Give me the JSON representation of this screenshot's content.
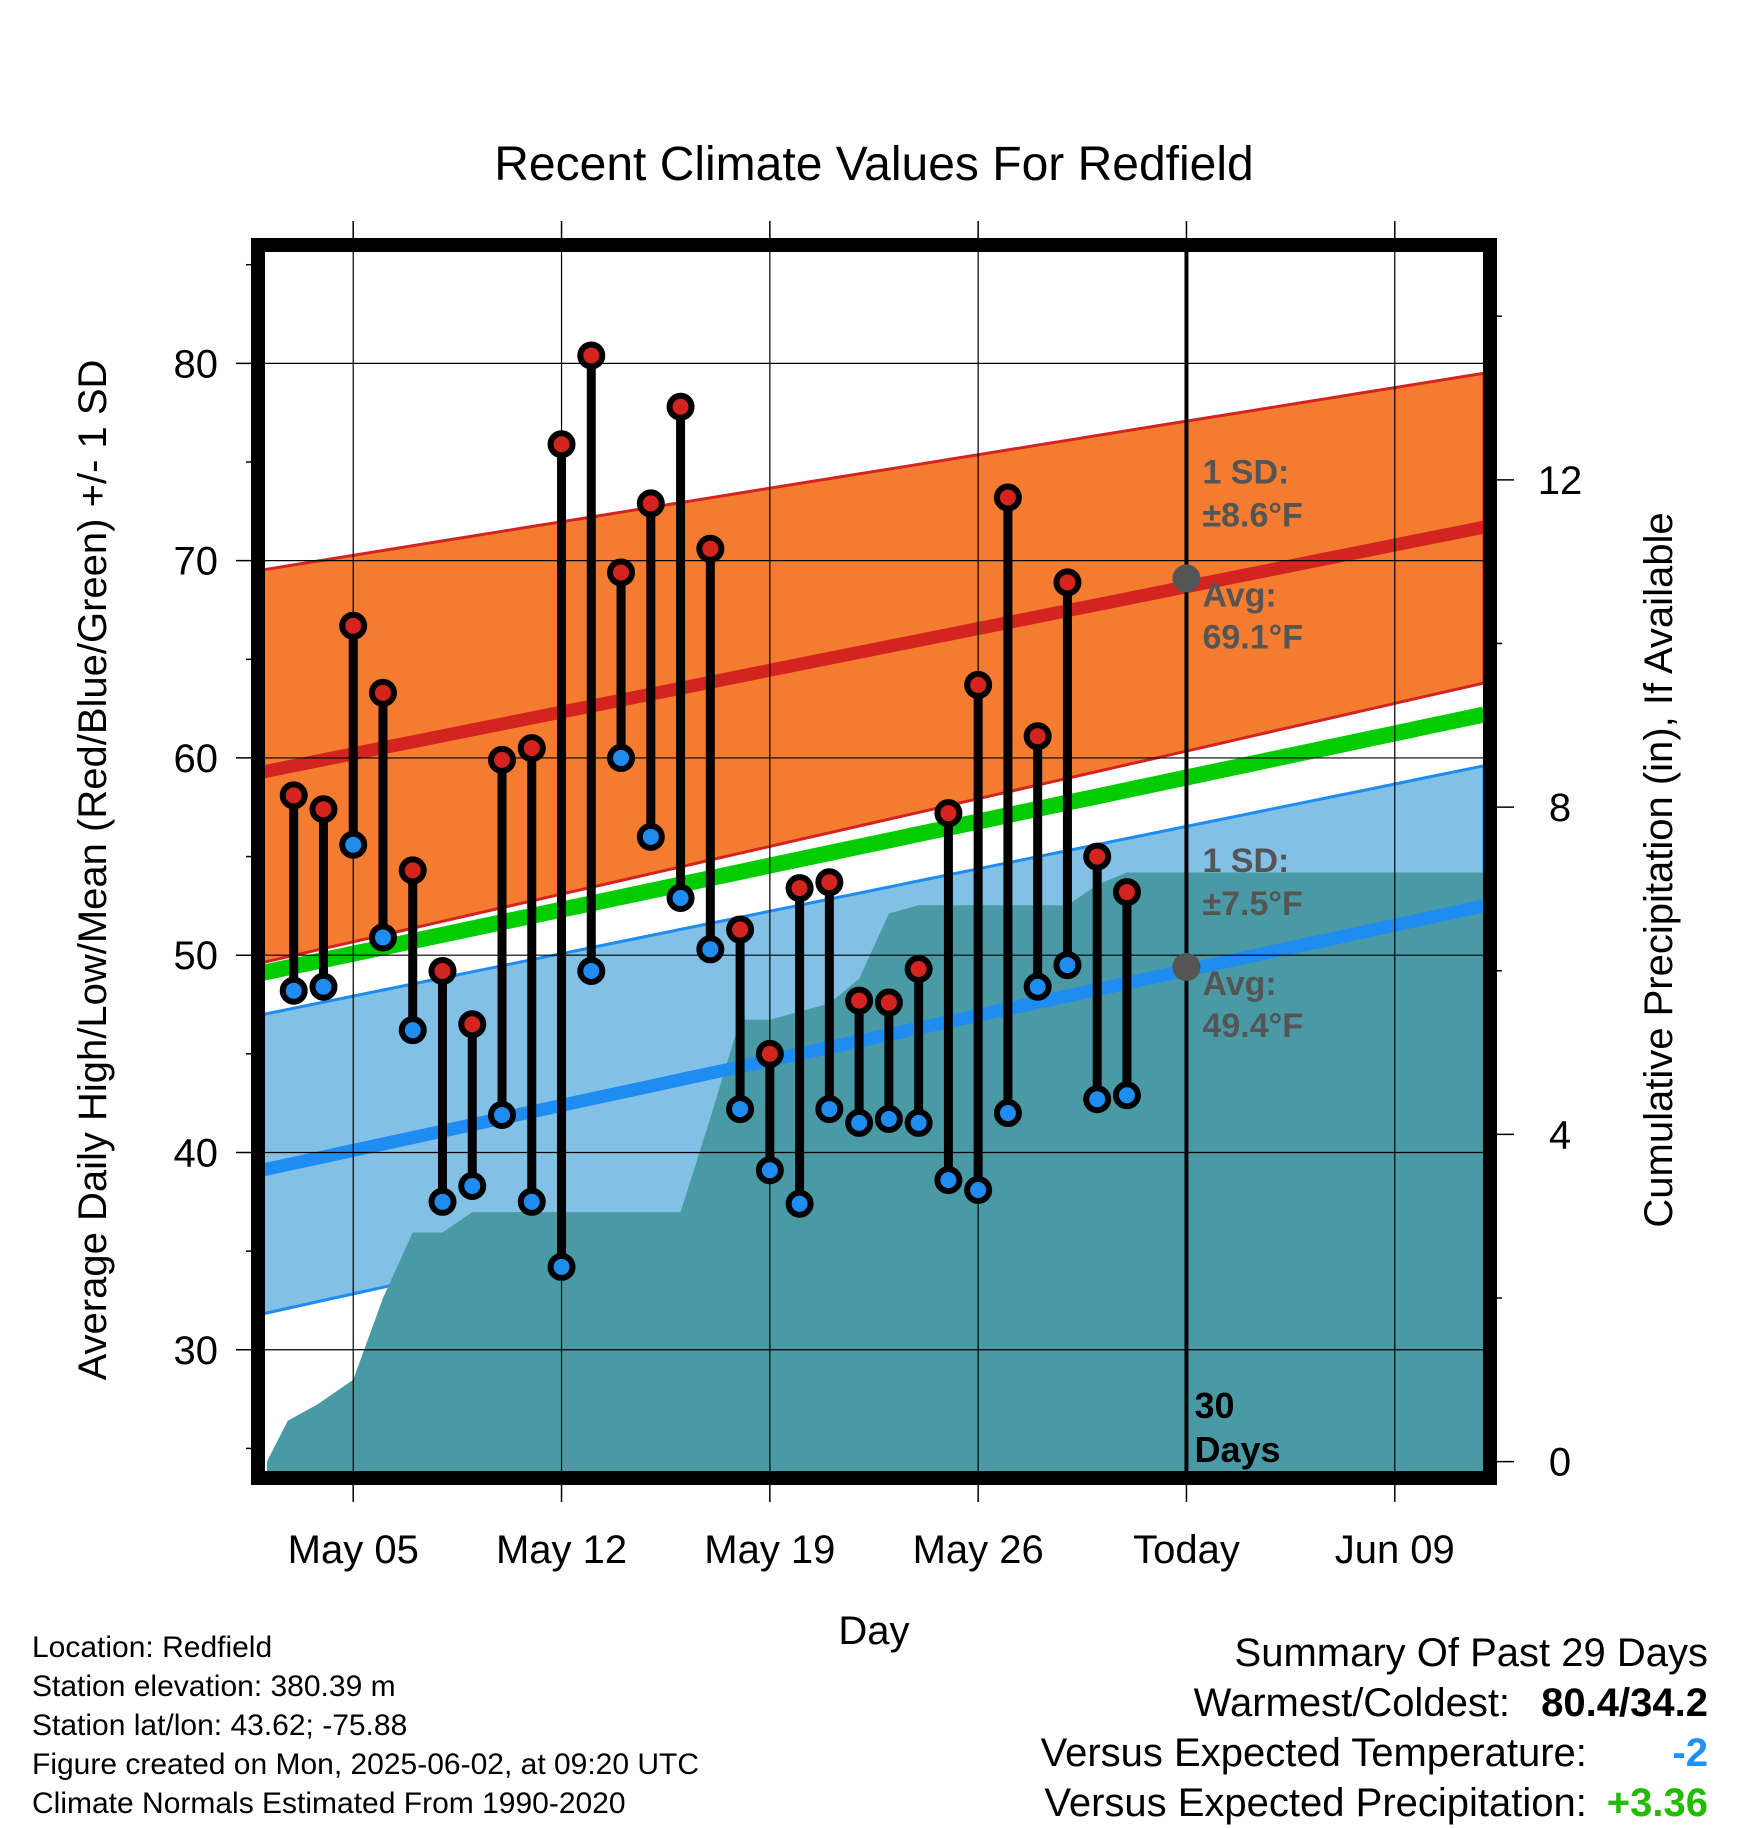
{
  "chart_data": {
    "type": "line",
    "title": "Recent Climate Values For Redfield",
    "xlabel": "Day",
    "ylabel": "Average Daily High/Low/Mean (Red/Blue/Green) +/- 1 SD",
    "y2label": "Cumulative Precipitation (in), If Available",
    "ylim": [
      23.5,
      86
    ],
    "y2lim": [
      -0.2,
      14.87
    ],
    "x_tick_labels": [
      "May 05",
      "May 12",
      "May 19",
      "May 26",
      "Today",
      "Jun 09"
    ],
    "x_tick_days": [
      4,
      11,
      18,
      25,
      32,
      39
    ],
    "y_ticks": [
      30,
      40,
      50,
      60,
      70,
      80
    ],
    "y2_ticks": [
      0,
      4,
      8,
      12
    ],
    "xlim": [
      0.8,
      42.2
    ],
    "today_day": 32,
    "today_label": "30\nDays",
    "normals": {
      "high_avg": {
        "day0": 59.0,
        "day42": 71.7
      },
      "high_upper": {
        "day0": 69.3,
        "day42": 79.5
      },
      "high_lower": {
        "day0": 49.3,
        "day42": 63.8
      },
      "mean_avg": {
        "day0": 48.8,
        "day42": 62.2
      },
      "low_avg": {
        "day0": 38.8,
        "day42": 52.5
      },
      "low_upper": {
        "day0": 46.7,
        "day42": 59.6
      },
      "low_lower": {
        "day0": 31.5,
        "day42": 45.5
      }
    },
    "annotations": {
      "high_sd_label": "1 SD:",
      "high_sd_value": "±8.6°F",
      "high_avg_label": "Avg:",
      "high_avg_value": "69.1°F",
      "low_sd_label": "1 SD:",
      "low_sd_value": "±7.5°F",
      "low_avg_label": "Avg:",
      "low_avg_value": "49.4°F",
      "high_avg_today": 69.1,
      "low_avg_today": 49.4
    },
    "days": [
      2,
      3,
      4,
      5,
      6,
      7,
      8,
      9,
      10,
      11,
      12,
      13,
      14,
      15,
      16,
      17,
      18,
      19,
      20,
      21,
      22,
      23,
      24,
      25,
      26,
      27,
      28,
      29,
      30,
      31
    ],
    "highs": [
      58.1,
      57.4,
      66.7,
      63.3,
      54.3,
      49.2,
      46.5,
      59.9,
      60.5,
      75.9,
      80.4,
      69.4,
      72.9,
      77.8,
      70.6,
      51.3,
      45.0,
      53.4,
      53.7,
      47.7,
      47.6,
      49.3,
      57.2,
      63.7,
      73.2,
      61.1,
      68.9,
      55.0,
      53.2,
      null
    ],
    "lows": [
      48.2,
      48.4,
      55.6,
      50.9,
      46.2,
      37.5,
      38.3,
      41.9,
      37.5,
      34.2,
      49.2,
      60.0,
      56.0,
      52.9,
      50.3,
      42.2,
      39.1,
      37.4,
      42.2,
      41.5,
      41.7,
      41.5,
      38.6,
      38.1,
      42.0,
      48.4,
      49.5,
      42.7,
      42.9,
      null
    ],
    "precip_cumulative": {
      "x": [
        1.1,
        1.8,
        2.8,
        4.0,
        5.0,
        6.0,
        7.0,
        8.0,
        9.0,
        10.0,
        11.0,
        12.0,
        13.0,
        14.0,
        15.0,
        16.0,
        17.0,
        18.0,
        19.0,
        20.0,
        21.0,
        22.0,
        23.0,
        24.0,
        25.0,
        26.0,
        27.0,
        28.0,
        29.0,
        30.0,
        31.0,
        32.0,
        34.0,
        36.0,
        38.0,
        40.0,
        42.0
      ],
      "y": [
        0,
        0.5,
        0.7,
        1.0,
        2.0,
        2.8,
        2.8,
        3.05,
        3.05,
        3.05,
        3.05,
        3.05,
        3.05,
        3.05,
        3.05,
        4.2,
        5.4,
        5.4,
        5.5,
        5.6,
        5.9,
        6.7,
        6.8,
        6.8,
        6.8,
        6.8,
        6.8,
        6.8,
        7.05,
        7.2,
        7.2,
        7.2,
        7.2,
        7.2,
        7.2,
        7.2,
        7.2
      ]
    },
    "colors": {
      "high_band": "#f47c30",
      "high_line": "#d42420",
      "mean_line": "#00cc00",
      "low_band": "#82c0e6",
      "low_line": "#1e8cf0",
      "precip": "#4a9aa5",
      "high_dot": "#d42420",
      "low_dot": "#1e8cf0",
      "today_dot": "#555555",
      "annotation_text": "#555555"
    }
  },
  "info": {
    "location": "Location: Redfield",
    "elevation": "Station elevation: 380.39 m",
    "latlon": "Station lat/lon: 43.62; -75.88",
    "created": "Figure created on Mon, 2025-06-02, at 09:20 UTC",
    "normals": "Climate Normals Estimated From 1990-2020"
  },
  "summary": {
    "title": "Summary Of Past 29 Days",
    "warmest_label": "Warmest/Coldest:",
    "warmest_value": "80.4/34.2",
    "temp_label": "Versus Expected Temperature:",
    "temp_value": "-2",
    "precip_label": "Versus Expected Precipitation:",
    "precip_value": "+3.36"
  }
}
